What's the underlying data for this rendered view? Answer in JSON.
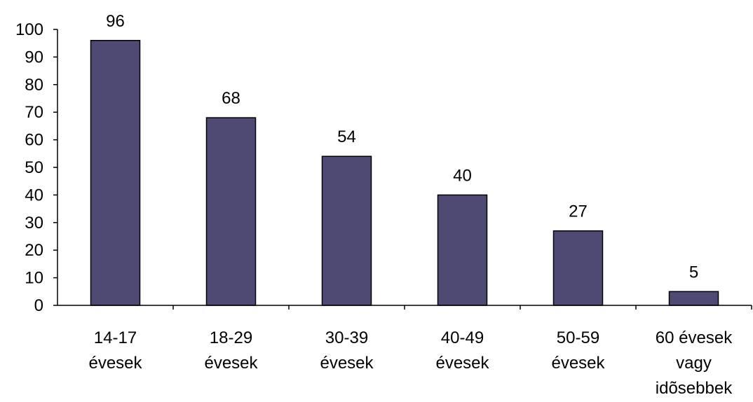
{
  "chart_data": {
    "type": "bar",
    "categories": [
      [
        "14-17",
        "évesek"
      ],
      [
        "18-29",
        "évesek"
      ],
      [
        "30-39",
        "évesek"
      ],
      [
        "40-49",
        "évesek"
      ],
      [
        "50-59",
        "évesek"
      ],
      [
        "60 évesek",
        "vagy",
        "idõsebbek"
      ]
    ],
    "values": [
      96,
      68,
      54,
      40,
      27,
      5
    ],
    "data_labels": [
      "96",
      "68",
      "54",
      "40",
      "27",
      "5"
    ],
    "yticks": [
      "0",
      "10",
      "20",
      "30",
      "40",
      "50",
      "60",
      "70",
      "80",
      "90",
      "100"
    ],
    "ylim": [
      0,
      100
    ],
    "title": "",
    "xlabel": "",
    "ylabel": "",
    "grid": false,
    "bar_color": "#4e4a74",
    "bar_edge_color": "#000000"
  }
}
